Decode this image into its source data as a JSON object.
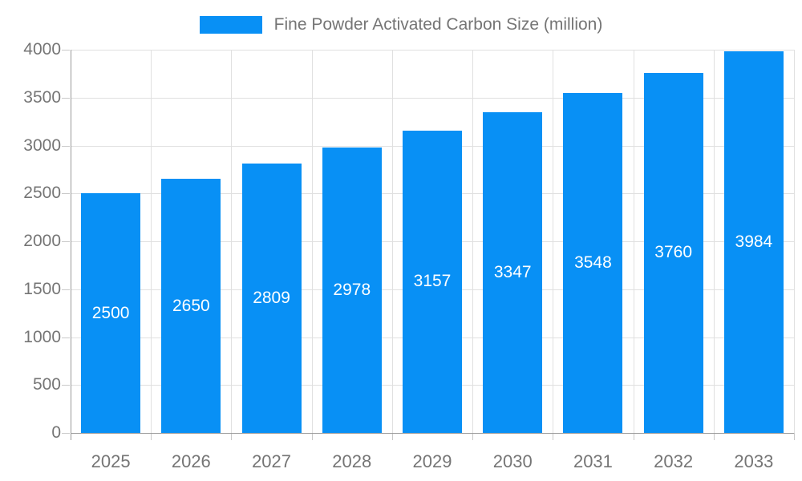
{
  "chart_data": {
    "type": "bar",
    "title": "Fine Powder Activated Carbon Size (million)",
    "categories": [
      "2025",
      "2026",
      "2027",
      "2028",
      "2029",
      "2030",
      "2031",
      "2032",
      "2033"
    ],
    "values": [
      2500,
      2650,
      2809,
      2978,
      3157,
      3347,
      3548,
      3760,
      3984
    ],
    "series": [
      {
        "name": "Fine Powder Activated Carbon Size (million)",
        "values": [
          2500,
          2650,
          2809,
          2978,
          3157,
          3347,
          3548,
          3760,
          3984
        ]
      }
    ],
    "xlabel": "",
    "ylabel": "",
    "ylim": [
      0,
      4000
    ],
    "yticks": [
      0,
      500,
      1000,
      1500,
      2000,
      2500,
      3000,
      3500,
      4000
    ],
    "grid": true,
    "legend_position": "top-center",
    "bar_labels_shown": true,
    "bar_label_color": "#FFFFFF",
    "colors": {
      "bar": "#0890F5",
      "grid": "#E0E0E0",
      "axis": "#999999",
      "tick": "#C9C9C9",
      "text": "#757575",
      "background": "#FFFFFF"
    }
  }
}
